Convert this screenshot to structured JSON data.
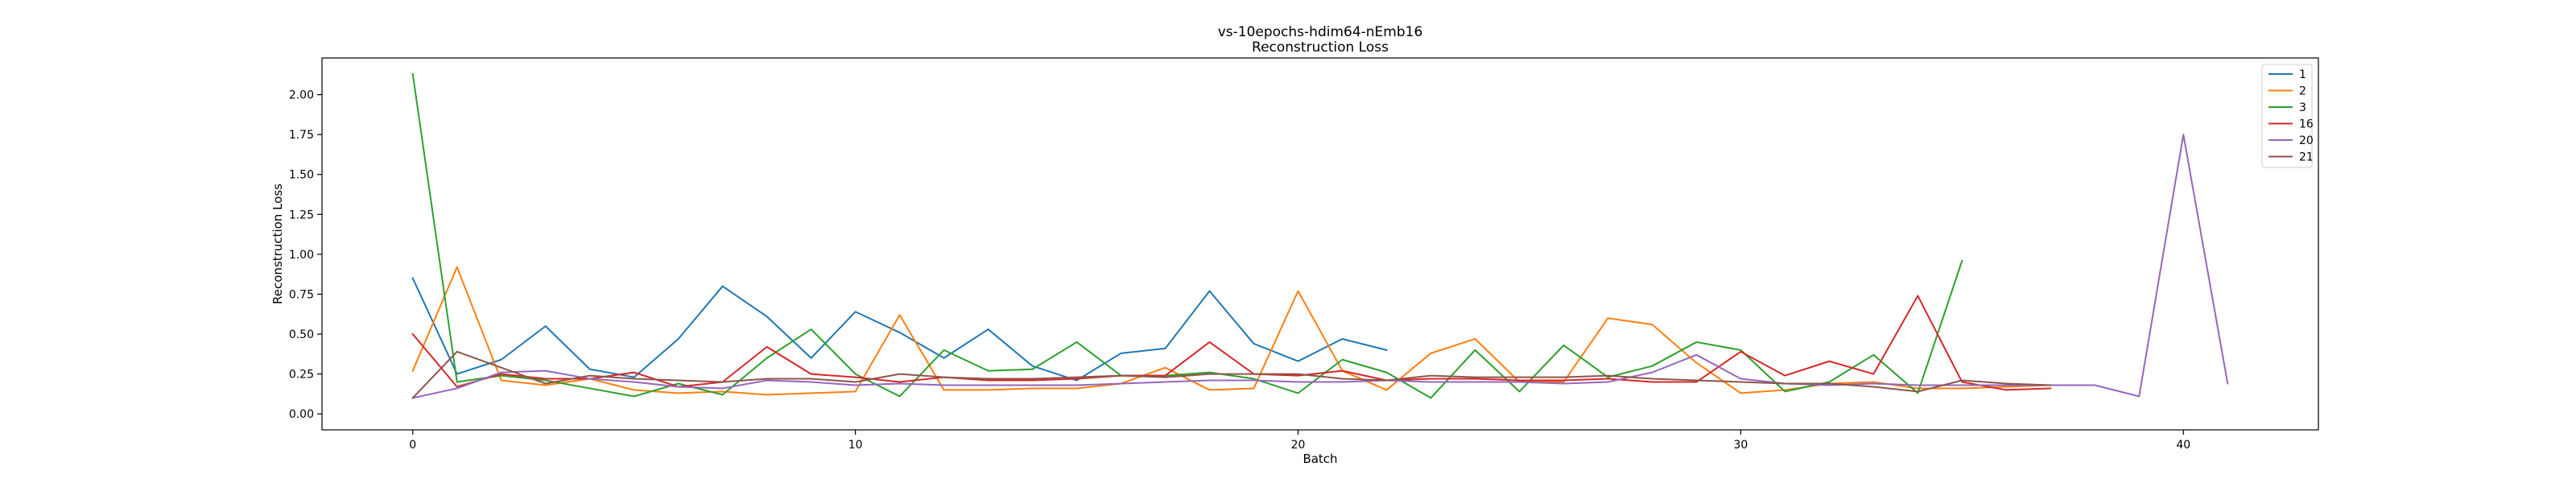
{
  "chart_data": {
    "type": "line",
    "title": "vs-10epochs-hdim64-nEmb16",
    "subtitle": "Reconstruction Loss",
    "xlabel": "Batch",
    "ylabel": "Reconstruction Loss",
    "xlim": [
      -2.05,
      43.05
    ],
    "ylim": [
      -0.1,
      2.23
    ],
    "xticks": [
      0,
      10,
      20,
      30,
      40
    ],
    "yticks": [
      0.0,
      0.25,
      0.5,
      0.75,
      1.0,
      1.25,
      1.5,
      1.75,
      2.0
    ],
    "ytick_labels": [
      "0.00",
      "0.25",
      "0.50",
      "0.75",
      "1.00",
      "1.25",
      "1.50",
      "1.75",
      "2.00"
    ],
    "grid": false,
    "legend_position": "top-right",
    "series": [
      {
        "name": "1",
        "color": "#1f77b4",
        "values": [
          0.85,
          0.25,
          0.34,
          0.55,
          0.28,
          0.23,
          0.47,
          0.8,
          0.61,
          0.35,
          0.64,
          0.51,
          0.35,
          0.53,
          0.3,
          0.21,
          0.38,
          0.41,
          0.77,
          0.44,
          0.33,
          0.47,
          0.4
        ]
      },
      {
        "name": "2",
        "color": "#ff7f0e",
        "values": [
          0.27,
          0.92,
          0.21,
          0.18,
          0.22,
          0.15,
          0.13,
          0.14,
          0.12,
          0.13,
          0.14,
          0.62,
          0.15,
          0.15,
          0.16,
          0.16,
          0.19,
          0.29,
          0.15,
          0.16,
          0.77,
          0.27,
          0.15,
          0.38,
          0.47,
          0.2,
          0.2,
          0.6,
          0.56,
          0.32,
          0.13,
          0.15,
          0.19,
          0.2,
          0.16,
          0.16,
          0.17,
          0.18
        ]
      },
      {
        "name": "3",
        "color": "#2ca02c",
        "values": [
          2.13,
          0.2,
          0.24,
          0.21,
          0.16,
          0.11,
          0.19,
          0.12,
          0.35,
          0.53,
          0.25,
          0.11,
          0.4,
          0.27,
          0.28,
          0.45,
          0.24,
          0.24,
          0.26,
          0.22,
          0.13,
          0.34,
          0.26,
          0.1,
          0.4,
          0.14,
          0.43,
          0.23,
          0.3,
          0.45,
          0.4,
          0.14,
          0.2,
          0.37,
          0.13,
          0.96
        ]
      },
      {
        "name": "16",
        "color": "#d62728",
        "values": [
          0.5,
          0.17,
          0.25,
          0.22,
          0.22,
          0.26,
          0.17,
          0.2,
          0.42,
          0.25,
          0.23,
          0.2,
          0.23,
          0.21,
          0.21,
          0.22,
          0.24,
          0.24,
          0.45,
          0.25,
          0.24,
          0.27,
          0.21,
          0.22,
          0.22,
          0.21,
          0.21,
          0.22,
          0.2,
          0.2,
          0.39,
          0.24,
          0.33,
          0.25,
          0.74,
          0.2,
          0.15,
          0.16
        ]
      },
      {
        "name": "20",
        "color": "#9467bd",
        "values": [
          0.1,
          0.16,
          0.26,
          0.27,
          0.22,
          0.2,
          0.17,
          0.16,
          0.21,
          0.2,
          0.18,
          0.19,
          0.18,
          0.18,
          0.18,
          0.18,
          0.19,
          0.2,
          0.21,
          0.21,
          0.2,
          0.2,
          0.21,
          0.2,
          0.2,
          0.2,
          0.19,
          0.2,
          0.26,
          0.37,
          0.22,
          0.19,
          0.18,
          0.19,
          0.18,
          0.18,
          0.18,
          0.18,
          0.18,
          0.11,
          1.75,
          0.19
        ]
      },
      {
        "name": "21",
        "color": "#8c564b",
        "values": [
          0.1,
          0.39,
          0.29,
          0.19,
          0.24,
          0.22,
          0.21,
          0.2,
          0.22,
          0.22,
          0.2,
          0.25,
          0.23,
          0.22,
          0.22,
          0.23,
          0.24,
          0.23,
          0.25,
          0.25,
          0.25,
          0.22,
          0.21,
          0.24,
          0.23,
          0.23,
          0.23,
          0.24,
          0.22,
          0.21,
          0.2,
          0.19,
          0.19,
          0.17,
          0.14,
          0.21,
          0.19,
          0.18
        ]
      }
    ]
  }
}
